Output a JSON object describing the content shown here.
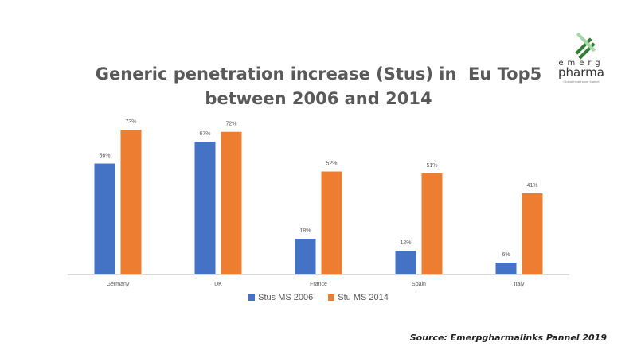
{
  "logo": {
    "word1": "emerg",
    "word2": "pharma",
    "tagline": "Global Healthcare Market"
  },
  "source": "Source: Emerpgharmalinks Pannel 2019",
  "chart_data": {
    "type": "bar",
    "title": [
      "Generic penetration increase (Stus) in  Eu Top5",
      "between 2006 and 2014"
    ],
    "xlabel": "",
    "ylabel": "",
    "ylim": [
      0,
      80
    ],
    "grid": false,
    "legend_position": "bottom",
    "categories": [
      "Germany",
      "UK",
      "France",
      "Spain",
      "Italy"
    ],
    "series": [
      {
        "name": "Stus MS 2006",
        "color": "#4472C4",
        "values": [
          56,
          67,
          18,
          12,
          6
        ],
        "labels": [
          "56%",
          "67%",
          "18%",
          "12%",
          "6%"
        ]
      },
      {
        "name": "Stu MS 2014",
        "color": "#ED7D31",
        "values": [
          73,
          72,
          52,
          51,
          41
        ],
        "labels": [
          "73%",
          "72%",
          "52%",
          "51%",
          "41%"
        ]
      }
    ]
  }
}
